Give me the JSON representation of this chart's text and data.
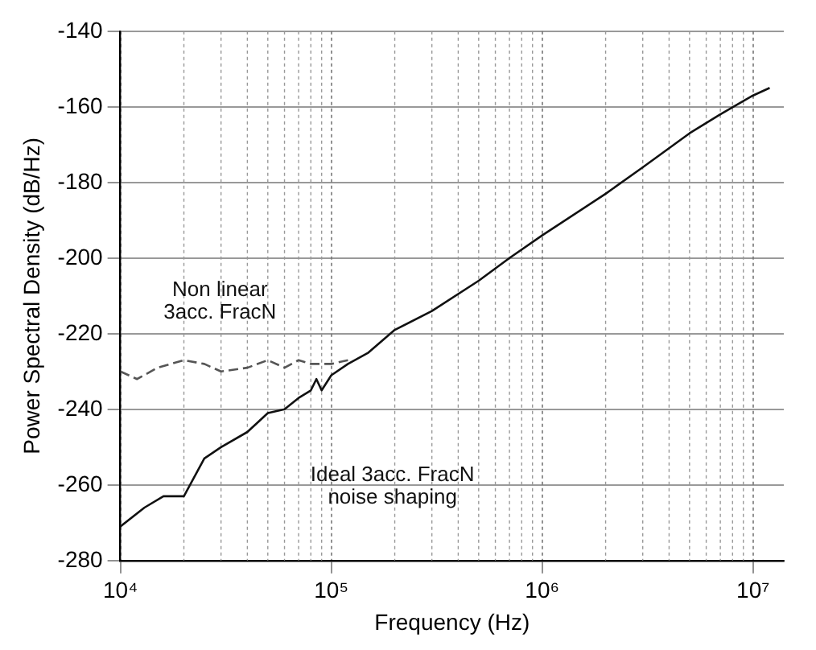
{
  "chart_data": {
    "type": "line",
    "xlabel": "Frequency (Hz)",
    "ylabel": "Power Spectral Density (dB/Hz)",
    "log": "x",
    "grid": true,
    "legend": false,
    "marker": "none",
    "xlim": [
      10000,
      14000000
    ],
    "ylim": [
      -280,
      -140
    ],
    "xticks": [
      {
        "value": 10000,
        "label": "10⁴"
      },
      {
        "value": 100000,
        "label": "10⁵"
      },
      {
        "value": 1000000,
        "label": "10⁶"
      },
      {
        "value": 10000000,
        "label": "10⁷"
      }
    ],
    "yticks": [
      -280,
      -260,
      -240,
      -220,
      -200,
      -180,
      -160,
      -140
    ],
    "series": [
      {
        "color": "#555555",
        "line_style": "dashed",
        "x": [
          10000,
          12000,
          15000,
          20000,
          25000,
          30000,
          40000,
          50000,
          60000,
          70000,
          80000,
          100000,
          120000
        ],
        "values": [
          -230,
          -232,
          -229,
          -227,
          -228,
          -230,
          -229,
          -227,
          -229,
          -227,
          -228,
          -228,
          -227
        ]
      },
      {
        "color": "#111111",
        "line_style": "solid",
        "x": [
          10000,
          13000,
          16000,
          20000,
          25000,
          30000,
          40000,
          50000,
          60000,
          70000,
          80000,
          85000,
          90000,
          100000,
          120000,
          150000,
          200000,
          300000,
          500000,
          700000,
          1000000,
          2000000,
          3000000,
          5000000,
          7000000,
          10000000,
          12000000
        ],
        "values": [
          -271,
          -266,
          -263,
          -263,
          -253,
          -250,
          -246,
          -241,
          -240,
          -237,
          -235,
          -232,
          -235,
          -231,
          -228,
          -225,
          -219,
          -214,
          -206,
          -200,
          -194,
          -183,
          -176,
          -167,
          -162,
          -157,
          -155
        ]
      }
    ],
    "annotations": [
      "Non linear\n3acc. FracN",
      "Ideal 3acc. FracN\nnoise shaping"
    ]
  }
}
